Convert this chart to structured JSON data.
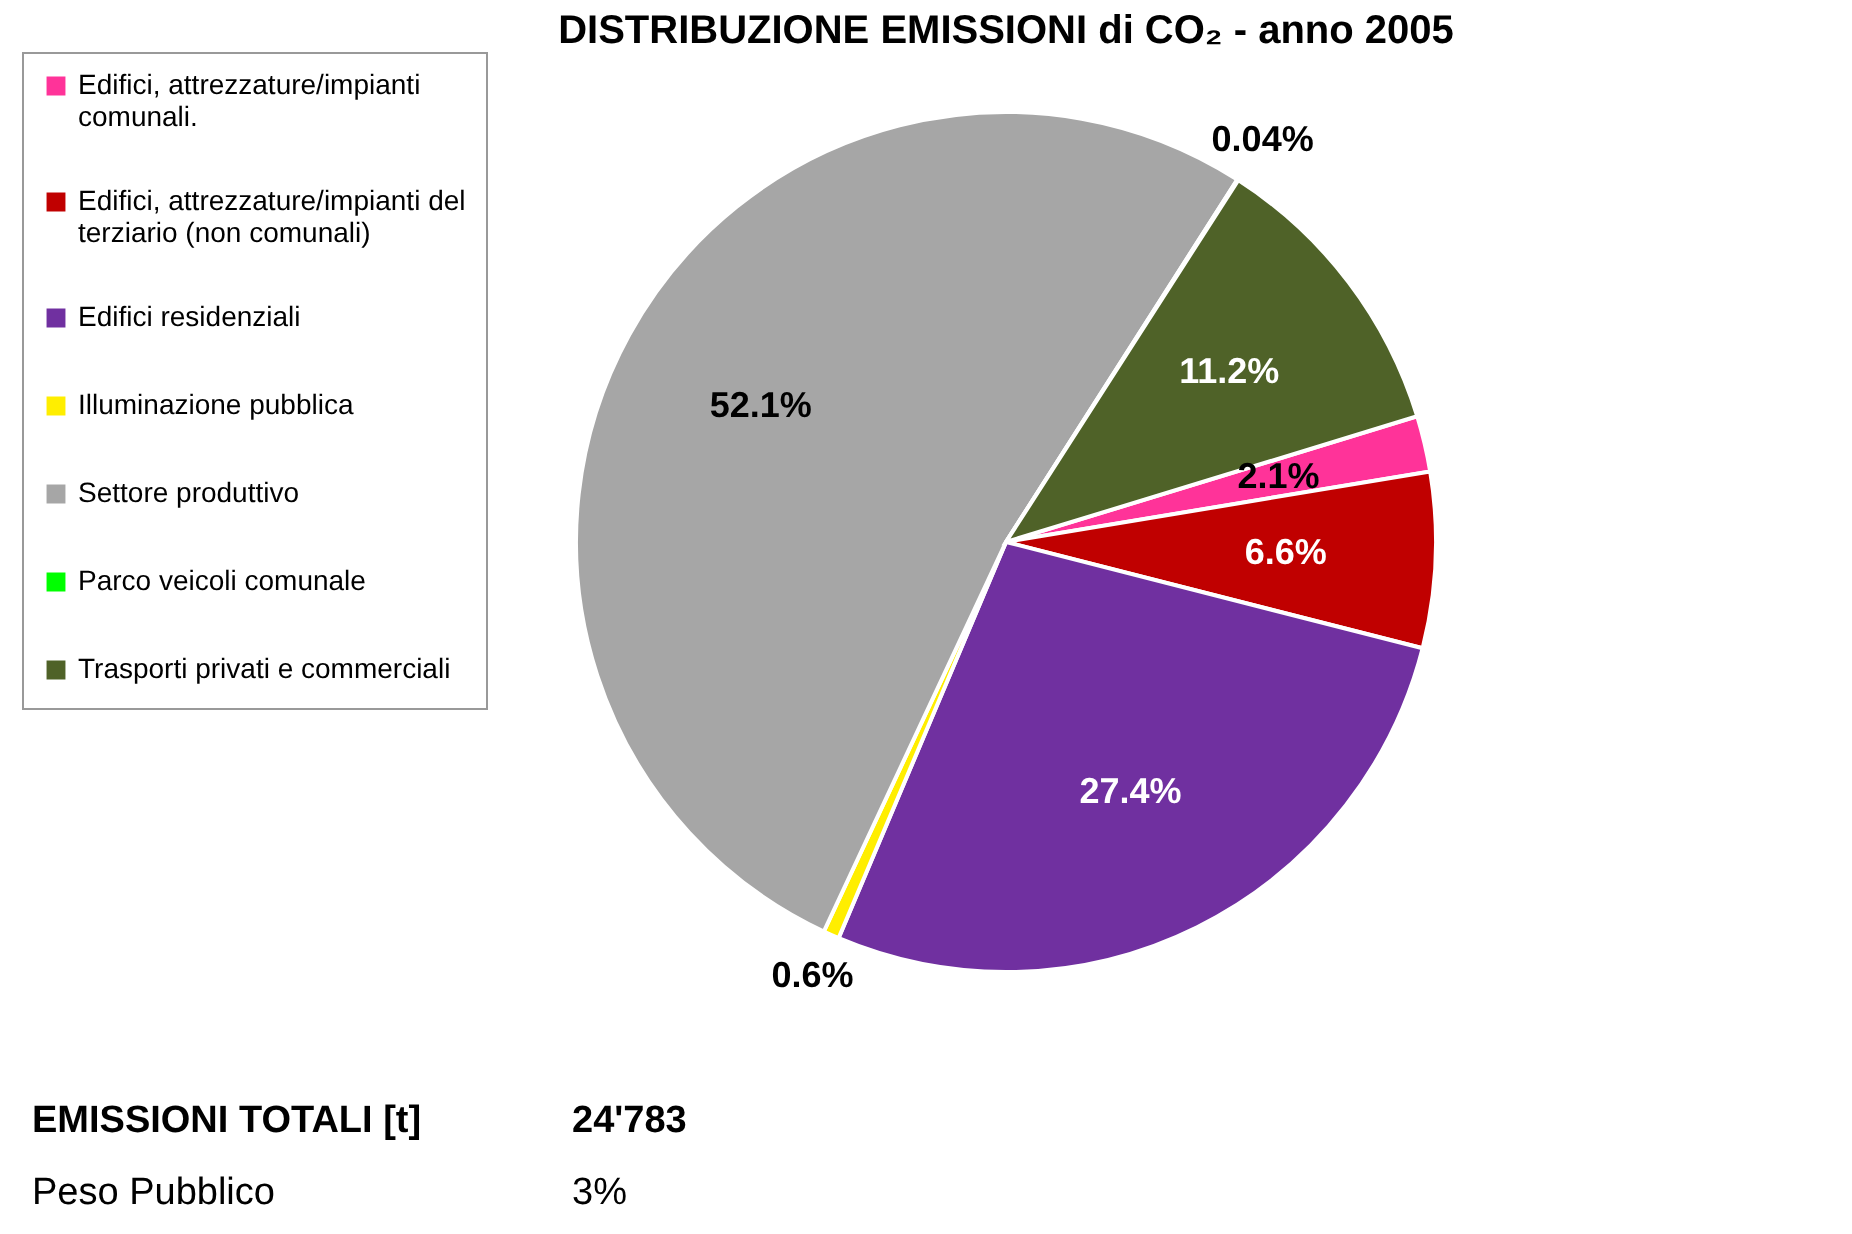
{
  "chart_data": {
    "type": "pie",
    "title": "DISTRIBUZIONE EMISSIONI di CO₂ - anno 2005",
    "categories": [
      "Edifici, attrezzature/impianti comunali.",
      "Edifici, attrezzature/impianti del terziario (non comunali)",
      "Edifici residenziali",
      "Illuminazione pubblica",
      "Settore produttivo",
      "Parco veicoli comunale",
      "Trasporti privati e commerciali"
    ],
    "values": [
      2.1,
      6.6,
      27.4,
      0.6,
      52.1,
      0.04,
      11.2
    ],
    "colors": [
      "#ff3399",
      "#c00000",
      "#7030a0",
      "#ffee00",
      "#a6a6a6",
      "#00ff00",
      "#4f6228"
    ],
    "value_labels": [
      "2.1%",
      "6.6%",
      "27.4%",
      "0.6%",
      "52.1%",
      "0.04%",
      "11.2%"
    ],
    "legend": "left",
    "annotations": [
      "EMISSIONI TOTALI [t]",
      "24'783",
      "Peso Pubblico",
      "3%"
    ]
  }
}
